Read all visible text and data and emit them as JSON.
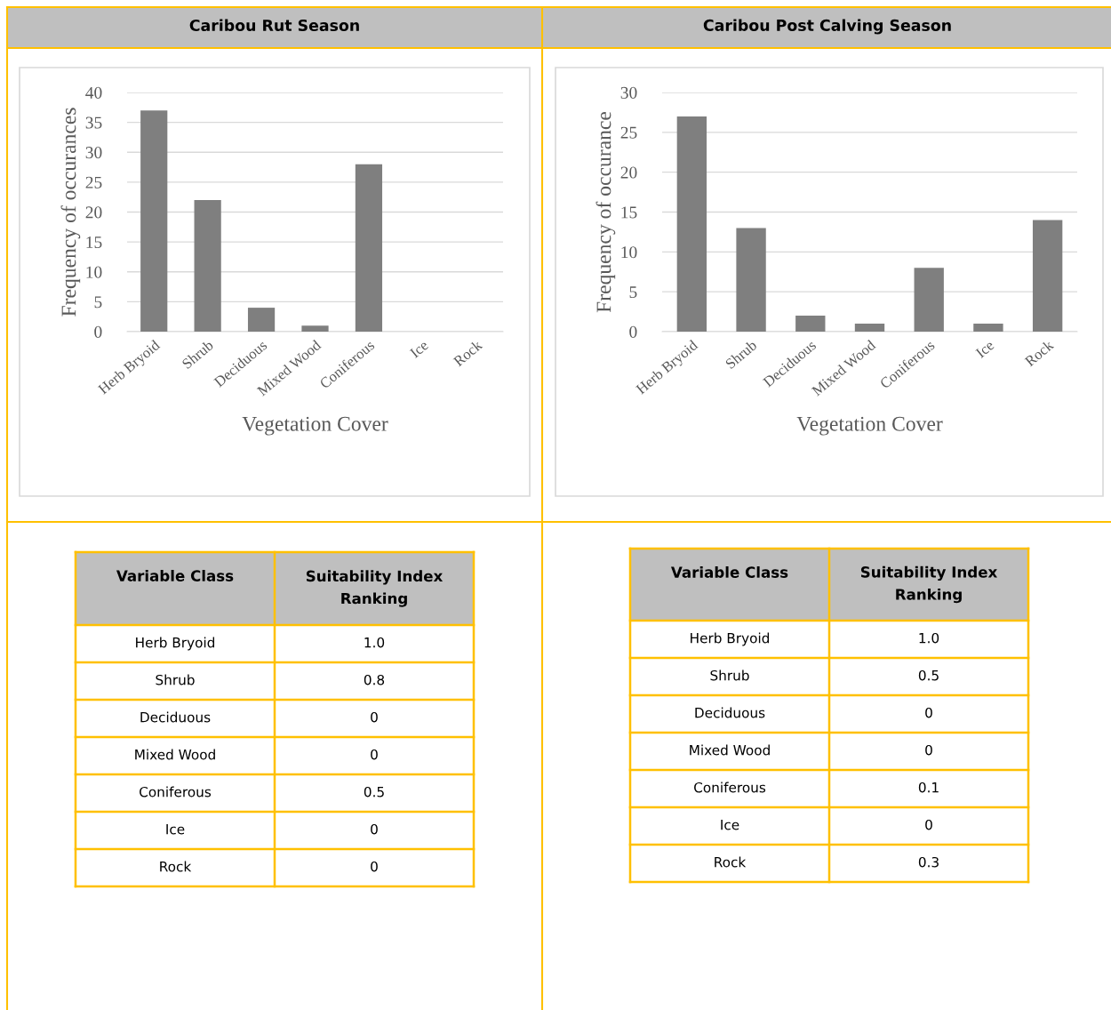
{
  "chart_data": [
    {
      "type": "bar",
      "title": "Caribou Rut Season",
      "xlabel": "Vegetation Cover",
      "ylabel": "Frequency of occurances",
      "categories": [
        "Herb Bryoid",
        "Shrub",
        "Deciduous",
        "Mixed Wood",
        "Coniferous",
        "Ice",
        "Rock"
      ],
      "values": [
        37,
        22,
        4,
        1,
        28,
        0,
        0
      ],
      "color": "#7f7f7f",
      "ylim": [
        0,
        40
      ],
      "yticks": [
        0,
        5,
        10,
        15,
        20,
        25,
        30,
        35,
        40
      ],
      "grid": "y"
    },
    {
      "type": "bar",
      "title": "Caribou Post Calving Season",
      "xlabel": "Vegetation Cover",
      "ylabel": "Frequency of occurance",
      "categories": [
        "Herb Bryoid",
        "Shrub",
        "Deciduous",
        "Mixed Wood",
        "Coniferous",
        "Ice",
        "Rock"
      ],
      "values": [
        27,
        13,
        2,
        1,
        8,
        1,
        14
      ],
      "color": "#7f7f7f",
      "ylim": [
        0,
        30
      ],
      "yticks": [
        0,
        5,
        10,
        15,
        20,
        25,
        30
      ],
      "grid": "y"
    },
    {
      "type": "other",
      "annotations": [
        "Variable Class",
        "Suitability Index Ranking"
      ],
      "categories": [
        "Herb Bryoid",
        "Shrub",
        "Deciduous",
        "Mixed Wood",
        "Coniferous",
        "Ice",
        "Rock"
      ],
      "values": [
        1.0,
        0.8,
        0,
        0,
        0.5,
        0,
        0
      ],
      "value_labels": [
        "1.0",
        "0.8",
        "0",
        "0",
        "0.5",
        "0",
        "0"
      ]
    },
    {
      "type": "other",
      "annotations": [
        "Variable Class",
        "Suitability Index Ranking"
      ],
      "categories": [
        "Herb Bryoid",
        "Shrub",
        "Deciduous",
        "Mixed Wood",
        "Coniferous",
        "Ice",
        "Rock"
      ],
      "values": [
        1.0,
        0.5,
        0,
        0,
        0.1,
        0,
        0.3
      ],
      "value_labels": [
        "1.0",
        "0.5",
        "0",
        "0",
        "0.1",
        "0",
        "0.3"
      ]
    }
  ]
}
